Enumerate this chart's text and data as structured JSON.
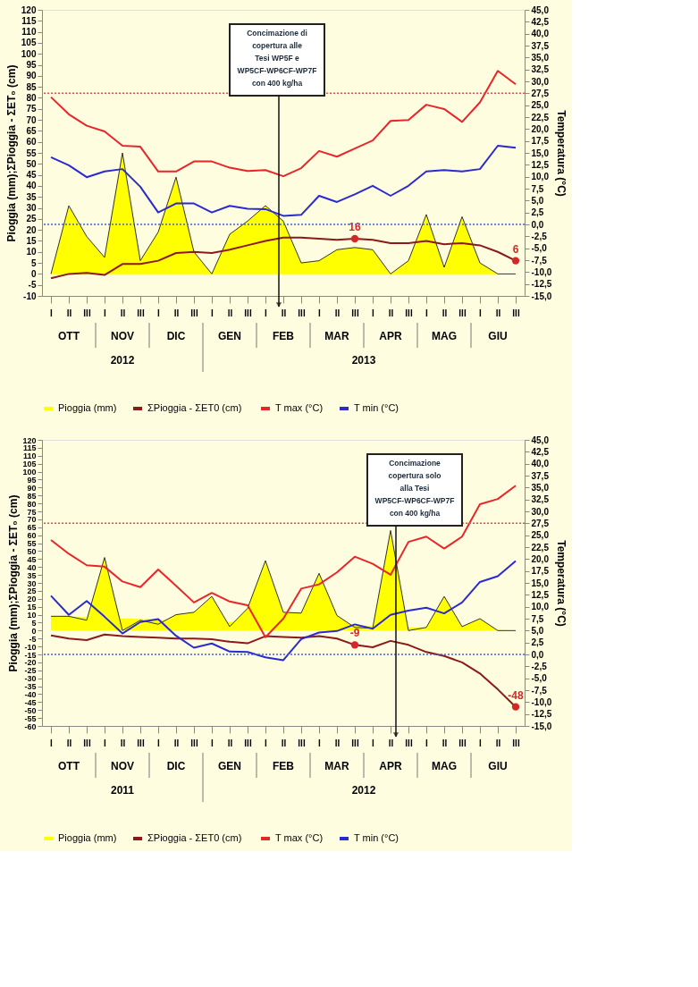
{
  "chart_data": [
    {
      "type": "line",
      "ylabel": "Pioggia (mm);ΣPioggia - ΣET₀ (cm)",
      "y2label": "Temperatura (°C)",
      "legend": "bottom",
      "categories": [
        "I",
        "II",
        "III",
        "I",
        "II",
        "III",
        "I",
        "II",
        "III",
        "I",
        "II",
        "III",
        "I",
        "II",
        "III",
        "I",
        "II",
        "III",
        "I",
        "II",
        "III",
        "I",
        "II",
        "III",
        "I",
        "II",
        "III"
      ],
      "ylim": [
        -10,
        120
      ],
      "yticks": [
        -10,
        -5,
        0,
        5,
        10,
        15,
        20,
        25,
        30,
        35,
        40,
        45,
        50,
        55,
        60,
        65,
        70,
        75,
        80,
        85,
        90,
        95,
        100,
        105,
        110,
        115,
        120
      ],
      "y2lim": [
        -15,
        45
      ],
      "y2ticks": [
        {
          "value": -15,
          "label": "-15,0"
        },
        {
          "value": -12.5,
          "label": "-12,5"
        },
        {
          "value": -10,
          "label": "-10,0"
        },
        {
          "value": -7.5,
          "label": "-7,5"
        },
        {
          "value": -5,
          "label": "-5,0"
        },
        {
          "value": -2.5,
          "label": "-2,5"
        },
        {
          "value": 0,
          "label": "0,0"
        },
        {
          "value": 2.5,
          "label": "2,5"
        },
        {
          "value": 5,
          "label": "5,0"
        },
        {
          "value": 7.5,
          "label": "7,5"
        },
        {
          "value": 10,
          "label": "10,0"
        },
        {
          "value": 12.5,
          "label": "12,5"
        },
        {
          "value": 15,
          "label": "15,0"
        },
        {
          "value": 17.5,
          "label": "17,5"
        },
        {
          "value": 20,
          "label": "20,0"
        },
        {
          "value": 22.5,
          "label": "22,5"
        },
        {
          "value": 25,
          "label": "25,0"
        },
        {
          "value": 27.5,
          "label": "27,5"
        },
        {
          "value": 30,
          "label": "30,0"
        },
        {
          "value": 32.5,
          "label": "32,5"
        },
        {
          "value": 35,
          "label": "35,0"
        },
        {
          "value": 37.5,
          "label": "37,5"
        },
        {
          "value": 40,
          "label": "40,0"
        },
        {
          "value": 42.5,
          "label": "42,5"
        },
        {
          "value": 45,
          "label": "45,0"
        }
      ],
      "series": [
        {
          "name": "Pioggia (mm)",
          "type": "area",
          "color": "#ffff00",
          "values": [
            0,
            31,
            17,
            7.5,
            55,
            6,
            19,
            44,
            10,
            0,
            18,
            24,
            31,
            24,
            5,
            6,
            11,
            12,
            11,
            0,
            6,
            27,
            3,
            26,
            5,
            0,
            0
          ]
        },
        {
          "name": "ΣPioggia - ΣET0  (cm)",
          "color": "#8b1a1a",
          "values": [
            -2,
            0,
            0.5,
            -0.5,
            4.5,
            4.5,
            6,
            9.5,
            10,
            9.5,
            11,
            13,
            15,
            16.5,
            16.5,
            16,
            15.5,
            16,
            15.5,
            14,
            14,
            15,
            13.5,
            14,
            13,
            10,
            6
          ],
          "value_labels": [
            null,
            null,
            null,
            null,
            null,
            null,
            null,
            null,
            null,
            null,
            null,
            null,
            null,
            null,
            null,
            null,
            null,
            "16",
            null,
            null,
            null,
            null,
            null,
            null,
            null,
            null,
            "6"
          ]
        },
        {
          "name": "T max (°C)",
          "axis": "y2",
          "color": "#e8262a",
          "values": [
            26.7,
            23.1,
            20.7,
            19.5,
            16.5,
            16.3,
            11.1,
            11.1,
            13.2,
            13.2,
            11.9,
            11.2,
            11.4,
            10.1,
            11.8,
            15.4,
            14.2,
            15.9,
            17.6,
            21.7,
            21.9,
            25.1,
            24.2,
            21.5,
            25.6,
            32.2,
            29.4
          ]
        },
        {
          "name": "T min (°C)",
          "axis": "y2",
          "color": "#2a2ad0",
          "values": [
            14.1,
            12.4,
            9.9,
            11.1,
            11.6,
            7.9,
            2.5,
            4.4,
            4.4,
            2.5,
            3.9,
            3.3,
            3.2,
            1.8,
            2.0,
            6.0,
            4.7,
            6.3,
            8.1,
            6.0,
            8.1,
            11.1,
            11.4,
            11.1,
            11.6,
            16.5,
            16.1
          ]
        }
      ],
      "ref_lines": [
        {
          "axis": "y2",
          "value": 27.5,
          "color": "#e05050",
          "line_style": "dotted"
        },
        {
          "axis": "y2",
          "value": 0,
          "color": "#4060e0",
          "line_style": "dotted"
        }
      ],
      "annotations": [
        "Concimazione di copertura alle Tesi WP5F e WP5CF-WP6CF-WP7F con 400 kg/ha",
        "OTT",
        "NOV",
        "DIC",
        "GEN",
        "FEB",
        "MAR",
        "APR",
        "MAG",
        "GIU",
        "2012",
        "2013"
      ]
    },
    {
      "type": "line",
      "ylabel": "Pioggia (mm);ΣPioggia - ΣET₀ (cm)",
      "y2label": "Temperatura (°C)",
      "legend": "bottom",
      "categories": [
        "I",
        "II",
        "III",
        "I",
        "II",
        "III",
        "I",
        "II",
        "III",
        "I",
        "II",
        "III",
        "I",
        "II",
        "III",
        "I",
        "II",
        "III",
        "I",
        "II",
        "III",
        "I",
        "II",
        "III",
        "I",
        "II",
        "III"
      ],
      "ylim": [
        -60,
        120
      ],
      "yticks": [
        -60,
        -55,
        -50,
        -45,
        -40,
        -35,
        -30,
        -25,
        -20,
        -15,
        -10,
        -5,
        0,
        5,
        10,
        15,
        20,
        25,
        30,
        35,
        40,
        45,
        50,
        55,
        60,
        65,
        70,
        75,
        80,
        85,
        90,
        95,
        100,
        105,
        110,
        115,
        120
      ],
      "y2lim": [
        -15,
        45
      ],
      "y2ticks": [
        {
          "value": -15,
          "label": "-15,0"
        },
        {
          "value": -12.5,
          "label": "-12,5"
        },
        {
          "value": -10,
          "label": "-10,0"
        },
        {
          "value": -7.5,
          "label": "-7,5"
        },
        {
          "value": -5,
          "label": "-5,0"
        },
        {
          "value": -2.5,
          "label": "-2,5"
        },
        {
          "value": 0,
          "label": "0,0"
        },
        {
          "value": 2.5,
          "label": "2,5"
        },
        {
          "value": 5,
          "label": "5,0"
        },
        {
          "value": 7.5,
          "label": "7,5"
        },
        {
          "value": 10,
          "label": "10,0"
        },
        {
          "value": 12.5,
          "label": "12,5"
        },
        {
          "value": 15,
          "label": "15,0"
        },
        {
          "value": 17.5,
          "label": "17,5"
        },
        {
          "value": 20,
          "label": "20,0"
        },
        {
          "value": 22.5,
          "label": "22,5"
        },
        {
          "value": 25,
          "label": "25,0"
        },
        {
          "value": 27.5,
          "label": "27,5"
        },
        {
          "value": 30,
          "label": "30,0"
        },
        {
          "value": 32.5,
          "label": "32,5"
        },
        {
          "value": 35,
          "label": "35,0"
        },
        {
          "value": 37.5,
          "label": "37,5"
        },
        {
          "value": 40,
          "label": "40,0"
        },
        {
          "value": 42.5,
          "label": "42,5"
        },
        {
          "value": 45,
          "label": "45,0"
        }
      ],
      "series": [
        {
          "name": "Pioggia (mm)",
          "type": "area",
          "color": "#ffff00",
          "values": [
            9,
            9,
            6.5,
            46,
            0,
            6.5,
            4,
            10,
            11.5,
            21.5,
            2.5,
            14,
            44,
            11.5,
            11,
            36,
            9.5,
            2,
            1.5,
            63,
            0,
            2,
            21.5,
            2.5,
            7.5,
            0,
            0
          ]
        },
        {
          "name": "ΣPioggia - ΣET0  (cm)",
          "color": "#8b1a1a",
          "values": [
            -3,
            -5,
            -6,
            -2.5,
            -3.5,
            -4,
            -4.5,
            -5,
            -5,
            -5.5,
            -7,
            -8,
            -3.5,
            -4,
            -4.5,
            -3.5,
            -5,
            -9,
            -10.5,
            -6.5,
            -9,
            -13.5,
            -16,
            -20,
            -27,
            -37,
            -48
          ],
          "value_labels": [
            null,
            null,
            null,
            null,
            null,
            null,
            null,
            null,
            null,
            null,
            null,
            null,
            null,
            null,
            null,
            null,
            null,
            "-9",
            null,
            null,
            null,
            null,
            null,
            null,
            null,
            null,
            "-48"
          ]
        },
        {
          "name": "T max (°C)",
          "axis": "y2",
          "color": "#e8262a",
          "values": [
            24.0,
            21.1,
            18.7,
            18.4,
            15.3,
            14.1,
            17.8,
            14.4,
            10.9,
            12.9,
            11.1,
            10.3,
            3.6,
            7.5,
            13.8,
            14.7,
            17.2,
            20.5,
            19.0,
            16.7,
            23.6,
            24.7,
            22.2,
            24.7,
            31.5,
            32.6,
            35.4
          ]
        },
        {
          "name": "T min (°C)",
          "axis": "y2",
          "color": "#2a2ad0",
          "values": [
            12.3,
            8.3,
            11.2,
            7.9,
            4.4,
            6.8,
            7.4,
            3.9,
            1.4,
            2.3,
            0.6,
            0.5,
            -0.6,
            -1.2,
            3.2,
            4.6,
            4.9,
            6.3,
            5.4,
            8.3,
            9.2,
            9.8,
            8.6,
            10.9,
            15.2,
            16.4,
            19.6
          ]
        }
      ],
      "ref_lines": [
        {
          "axis": "y2",
          "value": 27.5,
          "color": "#e05050",
          "line_style": "dotted"
        },
        {
          "axis": "y2",
          "value": 0,
          "color": "#4060e0",
          "line_style": "dotted"
        }
      ],
      "annotations": [
        "Concimazione copertura solo alla Tesi WP5CF-WP6CF-WP7F con 400 kg/ha",
        "OTT",
        "NOV",
        "DIC",
        "GEN",
        "FEB",
        "MAR",
        "APR",
        "MAG",
        "GIU",
        "2011",
        "2012"
      ]
    }
  ]
}
